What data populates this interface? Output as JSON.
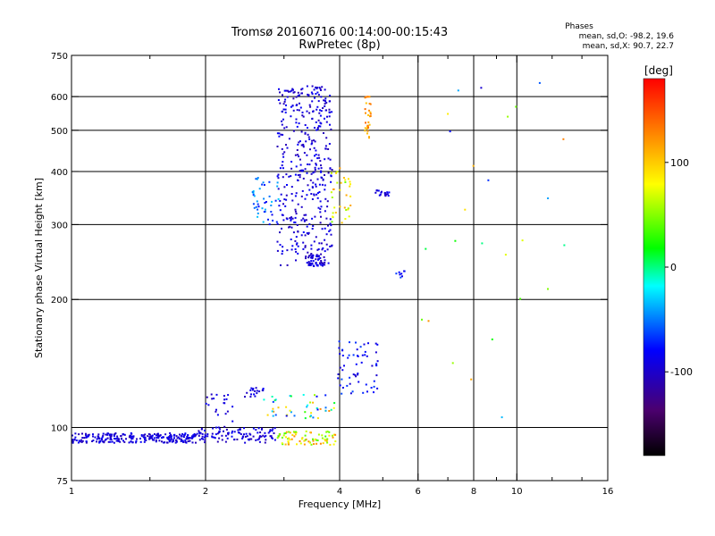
{
  "chart_data": {
    "type": "scatter",
    "title": "Tromsø 20160716 00:14:00-00:15:43",
    "subtitle": "RwPretec (8p)",
    "xlabel": "Frequency [MHz]",
    "ylabel": "Stationary phase Virtual Height [km]",
    "xscale": "log2",
    "yscale": "log",
    "xlim": [
      1,
      16
    ],
    "ylim": [
      75,
      750
    ],
    "x_ticks": [
      1,
      2,
      4,
      6,
      8,
      10,
      16
    ],
    "x_tick_labels": [
      "1",
      "2",
      "4",
      "6",
      "8",
      "10",
      "16"
    ],
    "x_minor_ticks": [
      1.5,
      3,
      5,
      7,
      9,
      12,
      14
    ],
    "y_ticks": [
      75,
      100,
      200,
      300,
      400,
      500,
      600,
      750
    ],
    "y_tick_labels": [
      "75",
      "100",
      "200",
      "300",
      "400",
      "500",
      "600",
      "750"
    ],
    "y_gridlines": [
      100,
      200,
      300,
      400,
      500,
      600
    ],
    "x_gridlines": [
      2,
      4,
      6,
      8,
      10
    ],
    "grid": true,
    "phase_note": {
      "title": "Phases",
      "line1": "mean, sd,O: -98.2, 19.6",
      "line2": "mean, sd,X:  90.7, 22.7"
    },
    "colorbar": {
      "label": "[deg]",
      "range": [
        -180,
        180
      ],
      "ticks": [
        100,
        0,
        -100
      ],
      "tick_labels": [
        "100",
        "0",
        "-100"
      ]
    },
    "groups": [
      {
        "freq": [
          1.0,
          1.9
        ],
        "height": [
          92,
          97
        ],
        "phase": [
          -110,
          -80
        ],
        "count": 260
      },
      {
        "freq": [
          1.9,
          2.9
        ],
        "height": [
          92,
          100
        ],
        "phase": [
          -110,
          -80
        ],
        "count": 110
      },
      {
        "freq": [
          2.9,
          3.95
        ],
        "height": [
          91,
          98
        ],
        "phase": [
          30,
          130
        ],
        "count": 80
      },
      {
        "freq": [
          2.0,
          2.3
        ],
        "height": [
          100,
          122
        ],
        "phase": [
          -110,
          -80
        ],
        "count": 22
      },
      {
        "freq": [
          2.45,
          2.75
        ],
        "height": [
          118,
          124
        ],
        "phase": [
          -110,
          -80
        ],
        "count": 20
      },
      {
        "freq": [
          2.7,
          3.9
        ],
        "height": [
          105,
          120
        ],
        "phase": [
          -90,
          130
        ],
        "count": 45
      },
      {
        "freq": [
          3.95,
          4.9
        ],
        "height": [
          120,
          160
        ],
        "phase": [
          -100,
          -60
        ],
        "count": 60
      },
      {
        "freq": [
          2.9,
          3.85
        ],
        "height": [
          240,
          640
        ],
        "phase": [
          -110,
          -80
        ],
        "count": 420
      },
      {
        "freq": [
          3.4,
          3.7
        ],
        "height": [
          238,
          255
        ],
        "phase": [
          -110,
          -80
        ],
        "count": 40
      },
      {
        "freq": [
          2.55,
          2.95
        ],
        "height": [
          300,
          390
        ],
        "phase": [
          -90,
          -30
        ],
        "count": 45
      },
      {
        "freq": [
          3.8,
          4.25
        ],
        "height": [
          300,
          420
        ],
        "phase": [
          40,
          120
        ],
        "count": 35
      },
      {
        "freq": [
          4.55,
          4.7
        ],
        "height": [
          480,
          600
        ],
        "phase": [
          100,
          140
        ],
        "count": 30
      },
      {
        "freq": [
          4.8,
          5.2
        ],
        "height": [
          350,
          362
        ],
        "phase": [
          -110,
          -80
        ],
        "count": 20
      },
      {
        "freq": [
          5.3,
          5.6
        ],
        "height": [
          225,
          235
        ],
        "phase": [
          -90,
          -60
        ],
        "count": 8
      },
      {
        "freq": [
          6.0,
          13.0
        ],
        "height": [
          100,
          650
        ],
        "phase": [
          -110,
          140
        ],
        "count": 26
      }
    ]
  }
}
